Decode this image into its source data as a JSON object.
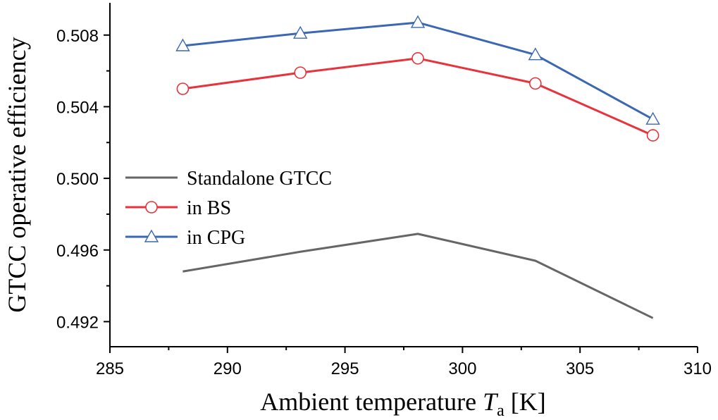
{
  "chart_data": {
    "type": "line",
    "title": "",
    "xlabel": {
      "prefix": "Ambient temperature ",
      "symbol": "T",
      "subscript": "a",
      "unit": " [K]"
    },
    "ylabel": "GTCC operative efficiency",
    "xlim": [
      285,
      310
    ],
    "ylim": [
      0.4906,
      0.5098
    ],
    "xticks": [
      "285",
      "290",
      "295",
      "300",
      "305",
      "310"
    ],
    "yticks": [
      "0.492",
      "0.496",
      "0.500",
      "0.504",
      "0.508"
    ],
    "grid": false,
    "legend_position": "center-left",
    "x": [
      288.1,
      293.1,
      298.1,
      303.1,
      308.1
    ],
    "series": [
      {
        "name": "Standalone GTCC",
        "color": "#666666",
        "marker": "none",
        "values": [
          0.4948,
          0.4959,
          0.4969,
          0.4954,
          0.4922
        ]
      },
      {
        "name": "in BS",
        "color": "#e8323c",
        "marker": "circle",
        "values": [
          0.505,
          0.5059,
          0.5067,
          0.5053,
          0.5024
        ]
      },
      {
        "name": "in CPG",
        "color": "#3b67b3",
        "marker": "triangle",
        "values": [
          0.5074,
          0.5081,
          0.5087,
          0.5069,
          0.5033
        ]
      }
    ]
  }
}
